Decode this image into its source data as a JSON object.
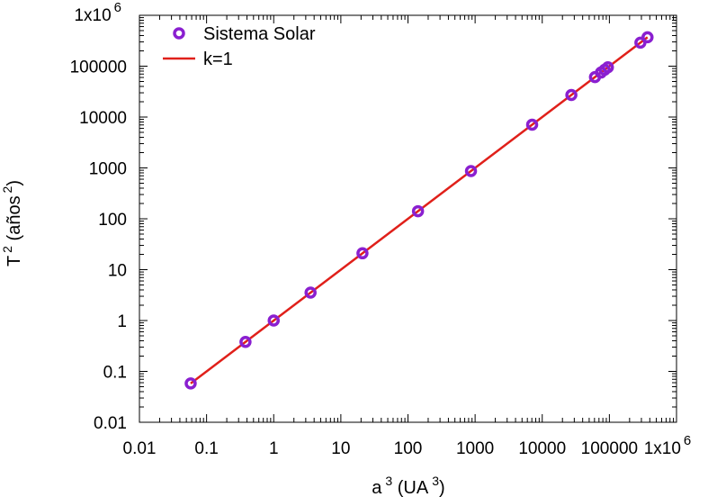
{
  "chart_data": {
    "type": "scatter",
    "x_scale": "log",
    "y_scale": "log",
    "xlim": [
      0.01,
      1000000
    ],
    "ylim": [
      0.01,
      1000000
    ],
    "grid": false,
    "legend_placement": "top-left",
    "xlabel": {
      "base": "a",
      "sup": "3",
      "unit_open": " (UA",
      "unit_sup": "3",
      "unit_close": ")"
    },
    "ylabel": {
      "base": "T",
      "sup": "2",
      "unit_open": " (años",
      "unit_sup": "2",
      "unit_close": ")"
    },
    "x_ticks": [
      {
        "value": 0.01,
        "label": "0.01"
      },
      {
        "value": 0.1,
        "label": "0.1"
      },
      {
        "value": 1,
        "label": "1"
      },
      {
        "value": 10,
        "label": "10"
      },
      {
        "value": 100,
        "label": "100"
      },
      {
        "value": 1000,
        "label": "1000"
      },
      {
        "value": 10000,
        "label": "10000"
      },
      {
        "value": 100000,
        "label": "100000"
      },
      {
        "value": 1000000,
        "label": "1x10",
        "sup": "6"
      }
    ],
    "y_ticks": [
      {
        "value": 0.01,
        "label": "0.01"
      },
      {
        "value": 0.1,
        "label": "0.1"
      },
      {
        "value": 1,
        "label": "1"
      },
      {
        "value": 10,
        "label": "10"
      },
      {
        "value": 100,
        "label": "100"
      },
      {
        "value": 1000,
        "label": "1000"
      },
      {
        "value": 10000,
        "label": "10000"
      },
      {
        "value": 100000,
        "label": "100000"
      },
      {
        "value": 1000000,
        "label": "1x10",
        "sup": "6"
      }
    ],
    "series": [
      {
        "name": "Sistema Solar",
        "kind": "scatter",
        "marker": "open-circle",
        "color": "#8a1fd0",
        "points": [
          {
            "x": 0.058,
            "y": 0.058
          },
          {
            "x": 0.38,
            "y": 0.38
          },
          {
            "x": 1.0,
            "y": 1.0
          },
          {
            "x": 3.54,
            "y": 3.54
          },
          {
            "x": 21.0,
            "y": 21.0
          },
          {
            "x": 141.0,
            "y": 141.0
          },
          {
            "x": 868.0,
            "y": 868.0
          },
          {
            "x": 7072.0,
            "y": 7072.0
          },
          {
            "x": 27150.0,
            "y": 27150.0
          },
          {
            "x": 61000.0,
            "y": 61000.0
          },
          {
            "x": 75000.0,
            "y": 75000.0
          },
          {
            "x": 85000.0,
            "y": 85000.0
          },
          {
            "x": 95000.0,
            "y": 95000.0
          },
          {
            "x": 290000.0,
            "y": 290000.0
          },
          {
            "x": 370000.0,
            "y": 370000.0
          }
        ]
      },
      {
        "name": "k=1",
        "kind": "line",
        "color": "#e0201a",
        "points": [
          {
            "x": 0.058,
            "y": 0.058
          },
          {
            "x": 370000.0,
            "y": 370000.0
          }
        ]
      }
    ]
  }
}
